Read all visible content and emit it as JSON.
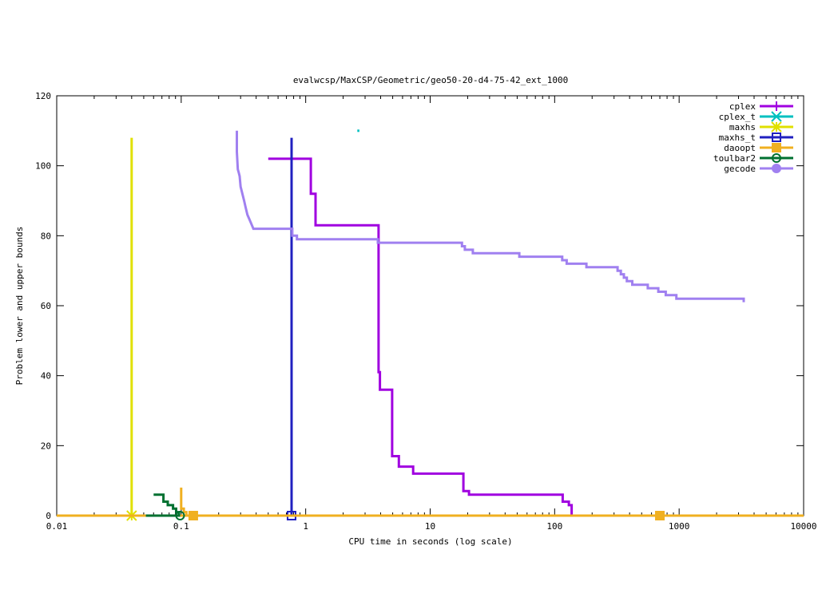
{
  "chart_data": {
    "type": "line",
    "title": "evalwcsp/MaxCSP/Geometric/geo50-20-d4-75-42_ext_1000",
    "xlabel": "CPU time in seconds (log scale)",
    "ylabel": "Problem lower and upper bounds",
    "xscale": "log",
    "xlim": [
      0.01,
      10000
    ],
    "ylim": [
      0,
      120
    ],
    "x_ticks": [
      0.01,
      0.1,
      1,
      10,
      100,
      1000,
      10000
    ],
    "x_tick_labels": [
      "0.01",
      "0.1",
      "1",
      "10",
      "100",
      "1000",
      "10000"
    ],
    "y_ticks": [
      0,
      20,
      40,
      60,
      80,
      100,
      120
    ],
    "y_tick_labels": [
      "0",
      "20",
      "40",
      "60",
      "80",
      "100",
      "120"
    ],
    "grid": false,
    "legend_position": "top-right",
    "series": [
      {
        "name": "cplex",
        "color": "#a000e0",
        "marker": "plus",
        "x": [
          0.5,
          1.1,
          1.1,
          1.2,
          1.2,
          3.85,
          3.85,
          3.95,
          3.95,
          4.95,
          4.95,
          5.6,
          5.6,
          7.3,
          7.3,
          18.5,
          18.5,
          20.5,
          20.5,
          116,
          116,
          130,
          130,
          137,
          137
        ],
        "y": [
          102,
          102,
          92,
          92,
          83,
          83,
          41,
          41,
          36,
          36,
          17,
          17,
          14,
          14,
          12,
          12,
          7,
          7,
          6,
          6,
          4,
          4,
          3,
          3,
          0
        ],
        "markers_x": [],
        "markers_y": []
      },
      {
        "name": "cplex_t",
        "color": "#00c0c0",
        "marker": "cross",
        "x": [
          2.6,
          2.7
        ],
        "y": [
          110,
          110
        ],
        "markers_x": [],
        "markers_y": []
      },
      {
        "name": "maxhs",
        "color": "#e0e000",
        "marker": "star",
        "x": [
          0.04,
          0.04
        ],
        "y": [
          0,
          108
        ],
        "markers_x": [
          0.04
        ],
        "markers_y": [
          0
        ]
      },
      {
        "name": "maxhs_t",
        "color": "#2020c0",
        "marker": "square",
        "x": [
          0.77,
          0.77
        ],
        "y": [
          0,
          108
        ],
        "markers_x": [
          0.77
        ],
        "markers_y": [
          0
        ]
      },
      {
        "name": "daoopt",
        "color": "#f0b020",
        "marker": "filled-square",
        "x": [
          0.01,
          10000
        ],
        "y": [
          0,
          0
        ],
        "extra_x": [
          0.1,
          0.1,
          0.105,
          0.105,
          0.11,
          0.11
        ],
        "extra_y": [
          8,
          2,
          2,
          1,
          1,
          0
        ],
        "markers_x": [
          0.125,
          700
        ],
        "markers_y": [
          0,
          0
        ]
      },
      {
        "name": "toulbar2",
        "color": "#007030",
        "marker": "circle",
        "x": [
          0.06,
          0.072,
          0.072,
          0.078,
          0.078,
          0.086,
          0.086,
          0.091,
          0.091,
          0.096,
          0.096
        ],
        "y": [
          6,
          6,
          4,
          4,
          3,
          3,
          2,
          2,
          1,
          1,
          0
        ],
        "extra_x": [
          0.052,
          0.098
        ],
        "extra_y": [
          0,
          0
        ],
        "markers_x": [
          0.098
        ],
        "markers_y": [
          0
        ]
      },
      {
        "name": "gecode",
        "color": "#a080f0",
        "marker": "filled-circle",
        "x": [
          0.28,
          0.28,
          0.285,
          0.29,
          0.295,
          0.3,
          0.305,
          0.31,
          0.32,
          0.33,
          0.34,
          0.35,
          0.36,
          0.38,
          0.41,
          0.78,
          0.78,
          0.85,
          0.85,
          3.8,
          3.8,
          18,
          18,
          19,
          19,
          22,
          22,
          52,
          52,
          115,
          115,
          125,
          125,
          180,
          180,
          320,
          320,
          340,
          340,
          360,
          360,
          380,
          380,
          420,
          420,
          560,
          560,
          680,
          680,
          780,
          780,
          950,
          950,
          1080,
          1080,
          3300,
          3300
        ],
        "y": [
          110,
          104,
          99,
          98,
          97,
          94,
          93,
          92,
          90,
          88,
          86,
          85,
          84,
          82,
          82,
          82,
          80,
          80,
          79,
          79,
          78,
          78,
          77,
          77,
          76,
          76,
          75,
          75,
          74,
          74,
          73,
          73,
          72,
          72,
          71,
          71,
          70,
          70,
          69,
          69,
          68,
          68,
          67,
          67,
          66,
          66,
          65,
          65,
          64,
          64,
          63,
          63,
          62,
          62,
          62,
          62,
          61
        ],
        "markers_x": [],
        "markers_y": []
      }
    ]
  }
}
